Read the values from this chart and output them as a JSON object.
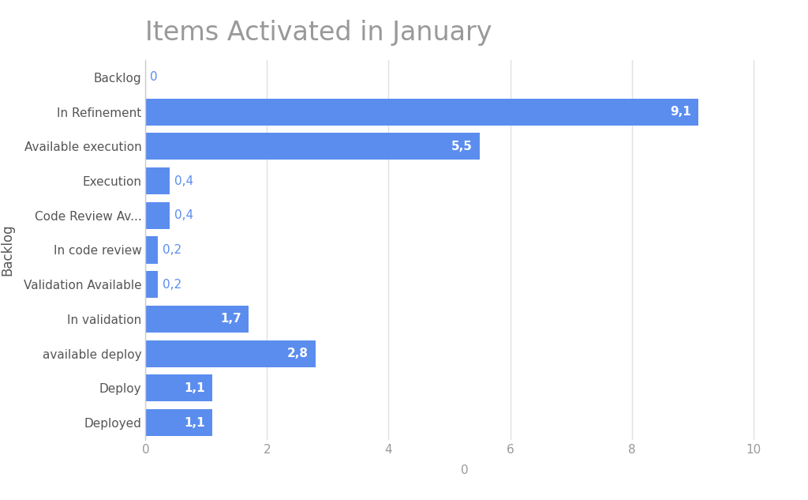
{
  "title": "Items Activated in January",
  "categories": [
    "Deployed",
    "Deploy",
    "available deploy",
    "In validation",
    "Validation Available",
    "In code review",
    "Code Review Av...",
    "Execution",
    "Available execution",
    "In Refinement",
    "Backlog"
  ],
  "values": [
    1.1,
    1.1,
    2.8,
    1.7,
    0.2,
    0.2,
    0.4,
    0.4,
    5.5,
    9.1,
    0
  ],
  "bar_color": "#5B8DEF",
  "label_color_inside": "#ffffff",
  "label_color_outside": "#5B8DEF",
  "ylabel": "Backlog",
  "xlabel": "0",
  "xlim": [
    0,
    10.5
  ],
  "xticks": [
    0,
    2,
    4,
    6,
    8,
    10
  ],
  "title_color": "#999999",
  "axis_label_color": "#555555",
  "tick_color": "#999999",
  "background_color": "#ffffff",
  "grid_color": "#e0e0e0",
  "title_fontsize": 24,
  "label_fontsize": 11,
  "bar_label_fontsize": 11,
  "ylabel_fontsize": 12
}
